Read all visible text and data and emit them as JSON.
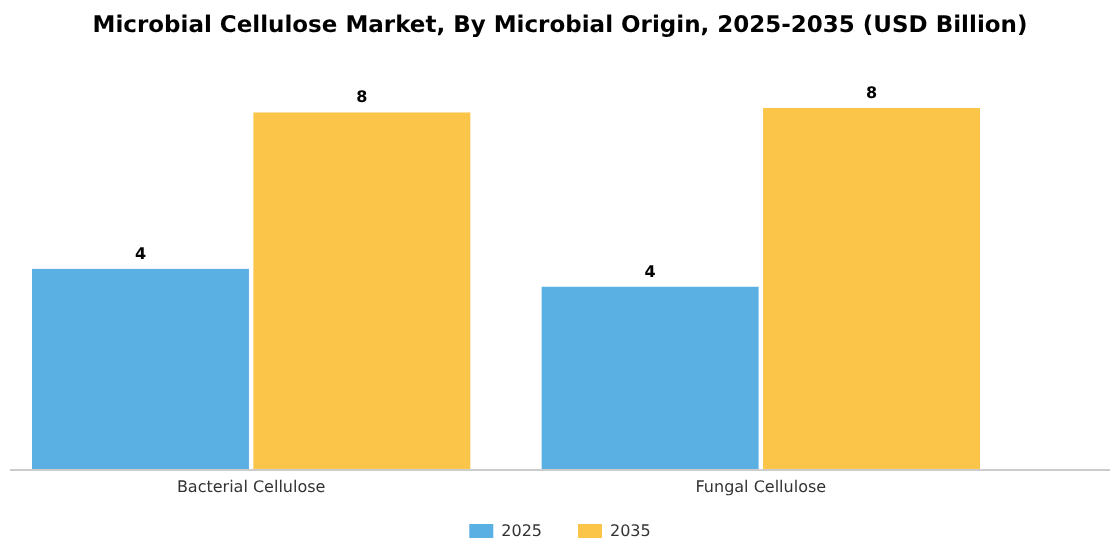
{
  "chart_data": {
    "type": "bar",
    "title": "Microbial Cellulose Market, By Microbial Origin, 2025-2035 (USD Billion)",
    "categories": [
      "Bacterial Cellulose",
      "Fungal Cellulose"
    ],
    "series": [
      {
        "name": "2025",
        "color": "#5aafe3",
        "values": [
          4.5,
          4.1
        ],
        "value_labels": [
          "4",
          "4"
        ]
      },
      {
        "name": "2035",
        "color": "#fbc54a",
        "values": [
          8.0,
          8.1
        ],
        "value_labels": [
          "8",
          "8"
        ]
      }
    ],
    "legend": "bottom"
  }
}
